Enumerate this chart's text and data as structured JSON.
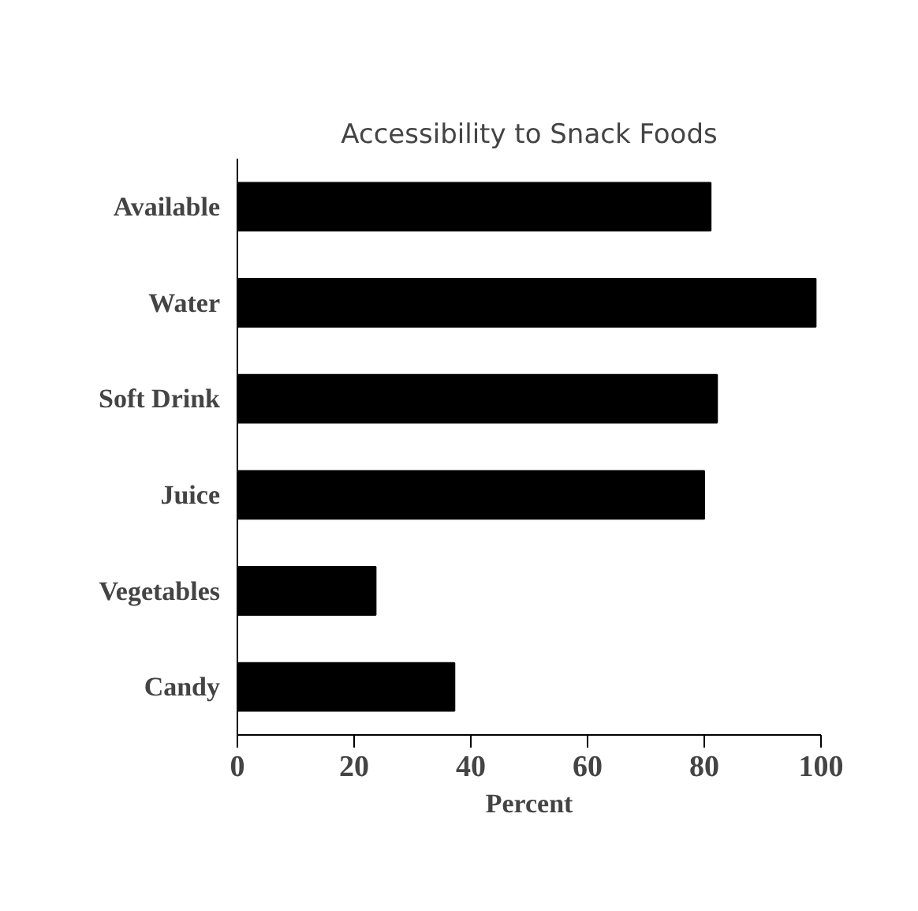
{
  "chart_data": {
    "type": "bar",
    "orientation": "horizontal",
    "title": "Accessibility to Snack Foods",
    "xlabel": "Percent",
    "categories": [
      "Available",
      "Water",
      "Soft Drink",
      "Juice",
      "Vegetables",
      "Candy"
    ],
    "values": [
      81.1,
      99.1,
      82.2,
      80,
      23.7,
      37.2
    ],
    "color": "#000000",
    "xlim": [
      0,
      100
    ],
    "xticks": [
      0,
      20,
      40,
      60,
      80,
      100
    ],
    "grid": false
  }
}
